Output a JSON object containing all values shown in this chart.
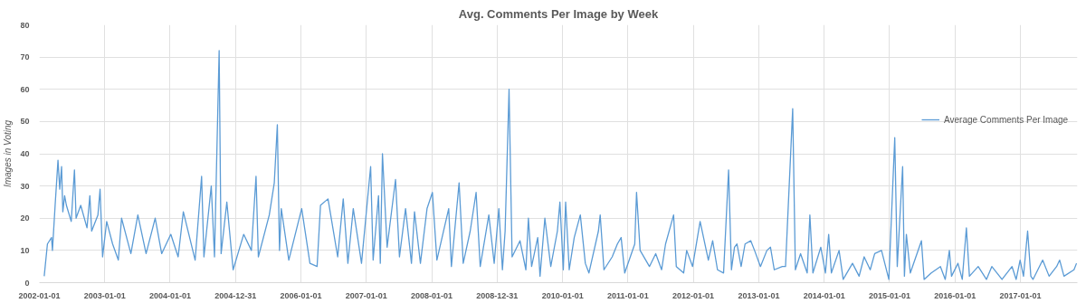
{
  "chart_data": {
    "type": "line",
    "title": "Avg. Comments Per Image by Week",
    "ylabel": "Images in Voting",
    "x": [
      "2002-01-28",
      "2002-02-15",
      "2002-03-10",
      "2002-03-15",
      "2002-03-30",
      "2002-04-15",
      "2002-04-25",
      "2002-05-05",
      "2002-05-12",
      "2002-05-22",
      "2002-06-01",
      "2002-06-28",
      "2002-07-16",
      "2002-07-25",
      "2002-08-20",
      "2002-09-24",
      "2002-10-10",
      "2002-10-20",
      "2002-11-24",
      "2002-12-06",
      "2002-12-20",
      "2003-01-12",
      "2003-02-14",
      "2003-03-18",
      "2003-04-05",
      "2003-05-27",
      "2003-07-05",
      "2003-08-20",
      "2003-10-10",
      "2003-11-15",
      "2004-01-05",
      "2004-02-15",
      "2004-03-15",
      "2004-05-20",
      "2004-06-25",
      "2004-07-08",
      "2004-08-18",
      "2004-09-05",
      "2004-10-01",
      "2004-10-12",
      "2004-11-13",
      "2004-12-18",
      "2005-02-15",
      "2005-03-30",
      "2005-04-25",
      "2005-05-08",
      "2005-07-08",
      "2005-08-05",
      "2005-08-22",
      "2005-09-03",
      "2005-09-13",
      "2005-10-25",
      "2006-01-05",
      "2006-02-20",
      "2006-04-01",
      "2006-04-20",
      "2006-06-01",
      "2006-07-25",
      "2006-08-25",
      "2006-09-20",
      "2006-10-20",
      "2006-12-05",
      "2007-01-25",
      "2007-02-08",
      "2007-03-10",
      "2007-03-20",
      "2007-04-01",
      "2007-04-27",
      "2007-06-13",
      "2007-07-05",
      "2007-08-08",
      "2007-09-10",
      "2007-09-27",
      "2007-10-30",
      "2007-12-06",
      "2008-01-05",
      "2008-01-30",
      "2008-04-05",
      "2008-04-20",
      "2008-06-02",
      "2008-06-25",
      "2008-08-03",
      "2008-09-05",
      "2008-09-28",
      "2008-11-15",
      "2008-12-15",
      "2009-01-10",
      "2009-01-30",
      "2009-02-14",
      "2009-03-08",
      "2009-03-25",
      "2009-05-08",
      "2009-06-10",
      "2009-06-24",
      "2009-07-12",
      "2009-08-15",
      "2009-08-28",
      "2009-09-24",
      "2009-10-27",
      "2009-12-03",
      "2009-12-17",
      "2010-01-05",
      "2010-01-18",
      "2010-02-07",
      "2010-03-07",
      "2010-04-10",
      "2010-05-08",
      "2010-05-28",
      "2010-07-20",
      "2010-07-30",
      "2010-08-20",
      "2010-10-05",
      "2010-11-03",
      "2010-11-24",
      "2010-12-14",
      "2011-02-08",
      "2011-02-18",
      "2011-03-10",
      "2011-05-01",
      "2011-06-05",
      "2011-07-08",
      "2011-07-30",
      "2011-09-13",
      "2011-09-28",
      "2011-11-08",
      "2011-11-25",
      "2011-12-28",
      "2012-02-08",
      "2012-03-25",
      "2012-04-18",
      "2012-05-15",
      "2012-06-18",
      "2012-07-16",
      "2012-08-01",
      "2012-08-18",
      "2012-09-01",
      "2012-09-24",
      "2012-10-16",
      "2012-11-17",
      "2012-12-08",
      "2013-01-10",
      "2013-02-15",
      "2013-03-07",
      "2013-03-28",
      "2013-05-12",
      "2013-05-30",
      "2013-07-09",
      "2013-07-24",
      "2013-08-22",
      "2013-09-28",
      "2013-10-13",
      "2013-10-30",
      "2013-12-13",
      "2014-01-08",
      "2014-01-26",
      "2014-02-10",
      "2014-03-25",
      "2014-04-17",
      "2014-06-08",
      "2014-07-15",
      "2014-08-12",
      "2014-09-15",
      "2014-10-10",
      "2014-11-17",
      "2014-12-28",
      "2015-01-30",
      "2015-02-13",
      "2015-03-15",
      "2015-03-25",
      "2015-04-05",
      "2015-04-27",
      "2015-06-28",
      "2015-07-13",
      "2015-08-22",
      "2015-10-12",
      "2015-11-08",
      "2015-12-01",
      "2015-12-13",
      "2016-01-18",
      "2016-02-11",
      "2016-03-05",
      "2016-03-22",
      "2016-05-10",
      "2016-06-25",
      "2016-07-25",
      "2016-09-20",
      "2016-11-15",
      "2016-12-08",
      "2016-12-30",
      "2017-01-18",
      "2017-02-10",
      "2017-02-28",
      "2017-03-12",
      "2017-05-05",
      "2017-06-10",
      "2017-07-22",
      "2017-08-08",
      "2017-09-01",
      "2017-10-27",
      "2017-11-10"
    ],
    "series": [
      {
        "name": "Average Comments Per Image",
        "color": "#5b9bd5",
        "values": [
          2,
          12,
          14,
          10,
          24,
          38,
          29,
          36,
          22,
          27,
          24,
          19,
          35,
          20,
          24,
          17,
          27,
          16,
          21,
          29,
          8,
          19,
          12,
          7,
          20,
          9,
          21,
          9,
          20,
          9,
          15,
          8,
          22,
          7,
          33,
          8,
          30,
          8,
          72,
          9,
          25,
          4,
          15,
          10,
          33,
          8,
          21,
          31,
          49,
          10,
          23,
          7,
          23,
          6,
          5,
          24,
          26,
          8,
          26,
          6,
          23,
          6,
          36,
          7,
          27,
          6,
          40,
          11,
          32,
          8,
          23,
          6,
          22,
          6,
          23,
          28,
          7,
          23,
          5,
          31,
          6,
          16,
          28,
          5,
          21,
          6,
          23,
          4,
          16,
          60,
          8,
          13,
          4,
          20,
          5,
          14,
          2,
          20,
          5,
          16,
          25,
          4,
          25,
          4,
          14,
          21,
          6,
          3,
          16,
          21,
          4,
          8,
          12,
          14,
          3,
          12,
          28,
          10,
          5,
          9,
          4,
          12,
          21,
          5,
          3,
          10,
          5,
          19,
          7,
          13,
          4,
          3,
          35,
          4,
          11,
          12,
          5,
          12,
          13,
          10,
          5,
          10,
          11,
          4,
          5,
          5,
          54,
          4,
          9,
          3,
          21,
          3,
          11,
          3,
          15,
          3,
          10,
          1,
          6,
          2,
          8,
          4,
          9,
          10,
          1,
          45,
          5,
          36,
          2,
          15,
          3,
          13,
          1,
          3,
          5,
          1,
          10,
          2,
          6,
          1,
          17,
          2,
          5,
          1,
          5,
          1,
          5,
          1,
          7,
          2,
          16,
          2,
          1,
          7,
          2,
          5,
          7,
          2,
          4,
          6
        ]
      }
    ],
    "xlim": [
      "2002-01-01",
      "2017-11-15"
    ],
    "xticks": [
      "2002-01-01",
      "2003-01-01",
      "2004-01-01",
      "2004-12-31",
      "2006-01-01",
      "2007-01-01",
      "2008-01-01",
      "2008-12-31",
      "2010-01-01",
      "2011-01-01",
      "2012-01-01",
      "2013-01-01",
      "2014-01-01",
      "2015-01-01",
      "2016-01-01",
      "2017-01-01"
    ],
    "ylim": [
      0,
      80
    ],
    "yticks": [
      0,
      10,
      20,
      30,
      40,
      50,
      60,
      70,
      80
    ],
    "grid": true,
    "legend": "right",
    "line_style": "solid"
  }
}
